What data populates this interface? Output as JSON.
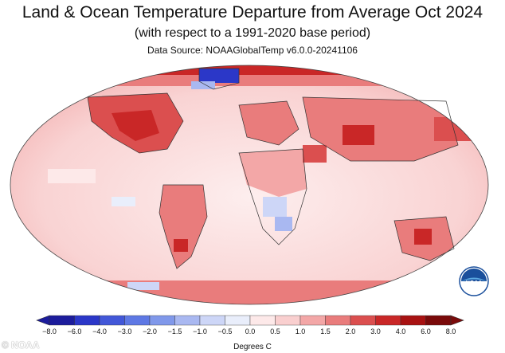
{
  "header": {
    "title": "Land & Ocean Temperature Departure from Average Oct 2024",
    "subtitle": "(with respect to a 1991-2020 base period)",
    "source": "Data Source: NOAAGlobalTemp v6.0.0-20241106"
  },
  "legend": {
    "units": "Degrees C",
    "ticks": [
      "−8.0",
      "−6.0",
      "−4.0",
      "−3.0",
      "−2.0",
      "−1.5",
      "−1.0",
      "−0.5",
      "0.0",
      "0.5",
      "1.0",
      "1.5",
      "2.0",
      "3.0",
      "4.0",
      "6.0",
      "8.0"
    ],
    "colors": [
      "#1c1c9c",
      "#2b37c8",
      "#4257d8",
      "#5e78e4",
      "#8098ea",
      "#a9b8f1",
      "#cdd6f7",
      "#e9eefb",
      "#fde9e9",
      "#f9cfcf",
      "#f3a7a7",
      "#e97c7c",
      "#db4f4f",
      "#c92727",
      "#a81212",
      "#7a0a0a"
    ]
  },
  "logo": {
    "label": "NOAA"
  },
  "credit": "© NOAA"
}
